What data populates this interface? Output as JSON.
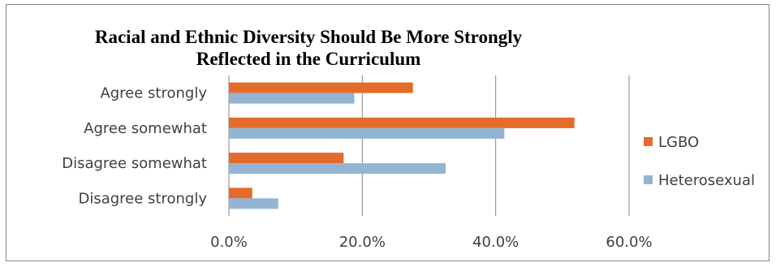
{
  "chart_data": {
    "type": "bar",
    "orientation": "horizontal",
    "title": "Racial and Ethnic Diversity Should Be More Strongly Reflected in the Curriculum",
    "categories": [
      "Agree strongly",
      "Agree somewhat",
      "Disagree somewhat",
      "Disagree strongly"
    ],
    "series": [
      {
        "name": "LGBO",
        "values": [
          27.6,
          51.8,
          17.2,
          3.5
        ],
        "color": "#E36C2A"
      },
      {
        "name": "Heterosexual",
        "values": [
          18.8,
          41.3,
          32.5,
          7.4
        ],
        "color": "#93B4D3"
      }
    ],
    "xlim": [
      0,
      60
    ],
    "xticks": [
      "0.0%",
      "20.0%",
      "40.0%",
      "60.0%"
    ],
    "xtick_values": [
      0,
      20,
      40,
      60
    ],
    "grid": true,
    "legend_position": "right"
  }
}
